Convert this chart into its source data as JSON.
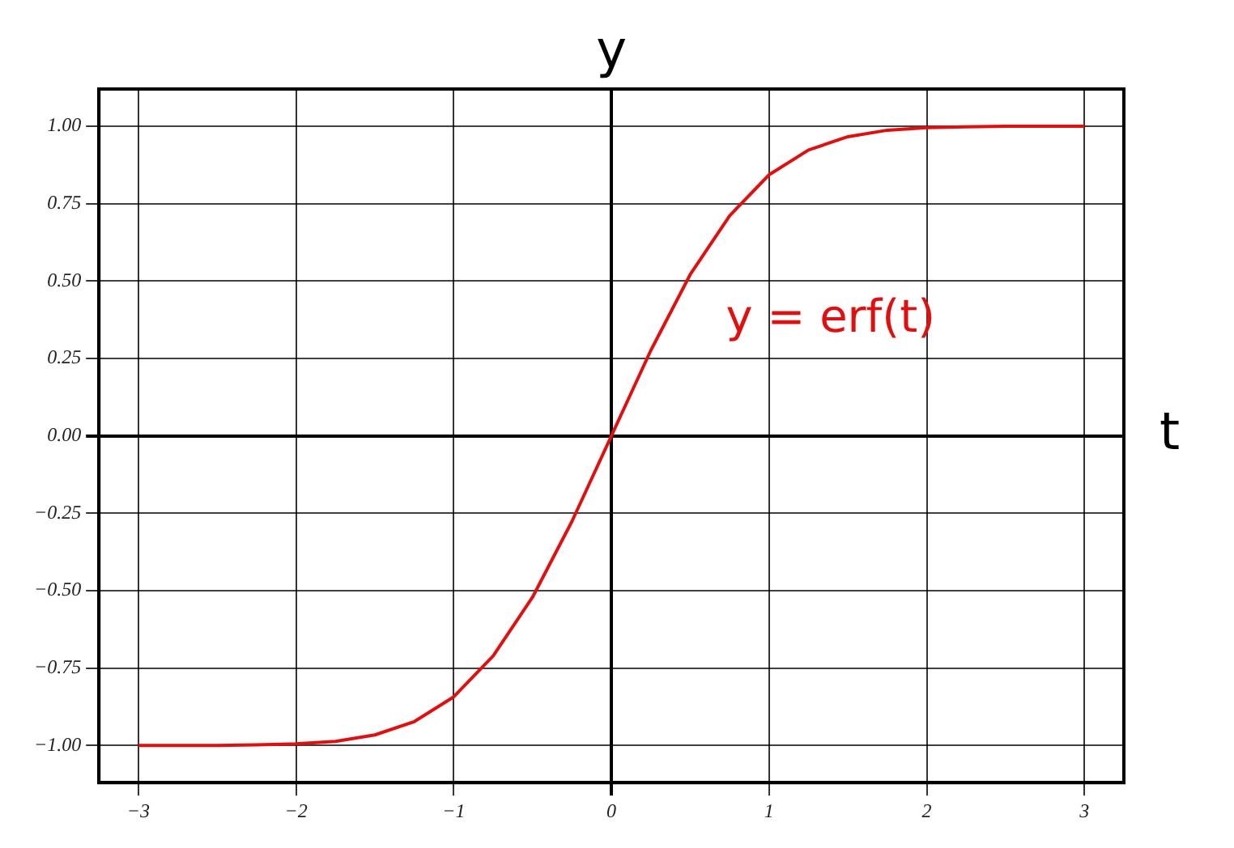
{
  "chart_data": {
    "type": "line",
    "xlabel": "t",
    "ylabel": "y",
    "xlim": [
      -3.25,
      3.25
    ],
    "ylim": [
      -1.12,
      1.12
    ],
    "xticks": [
      {
        "value": -3,
        "label": "−3"
      },
      {
        "value": -2,
        "label": "−2"
      },
      {
        "value": -1,
        "label": "−1"
      },
      {
        "value": 0,
        "label": "0"
      },
      {
        "value": 1,
        "label": "1"
      },
      {
        "value": 2,
        "label": "2"
      },
      {
        "value": 3,
        "label": "3"
      }
    ],
    "yticks": [
      {
        "value": -1,
        "label": "−1.00"
      },
      {
        "value": -0.75,
        "label": "−0.75"
      },
      {
        "value": -0.5,
        "label": "−0.50"
      },
      {
        "value": -0.25,
        "label": "−0.25"
      },
      {
        "value": 0,
        "label": "0.00"
      },
      {
        "value": 0.25,
        "label": "0.25"
      },
      {
        "value": 0.5,
        "label": "0.50"
      },
      {
        "value": 0.75,
        "label": "0.75"
      },
      {
        "value": 1,
        "label": "1.00"
      }
    ],
    "x": [
      -3,
      -2.75,
      -2.5,
      -2.25,
      -2,
      -1.75,
      -1.5,
      -1.25,
      -1,
      -0.75,
      -0.5,
      -0.25,
      0,
      0.25,
      0.5,
      0.75,
      1,
      1.25,
      1.5,
      1.75,
      2,
      2.25,
      2.5,
      2.75,
      3
    ],
    "series": [
      {
        "name": "y = erf(t)",
        "color": "#e01010",
        "values": [
          -1,
          -1,
          -1,
          -0.998,
          -0.995,
          -0.987,
          -0.966,
          -0.923,
          -0.843,
          -0.711,
          -0.521,
          -0.276,
          0,
          0.276,
          0.521,
          0.711,
          0.843,
          0.923,
          0.966,
          0.987,
          0.995,
          0.998,
          1,
          1,
          1
        ]
      }
    ],
    "grid": true,
    "legend": false,
    "marker": "none",
    "line_style": "solid"
  }
}
